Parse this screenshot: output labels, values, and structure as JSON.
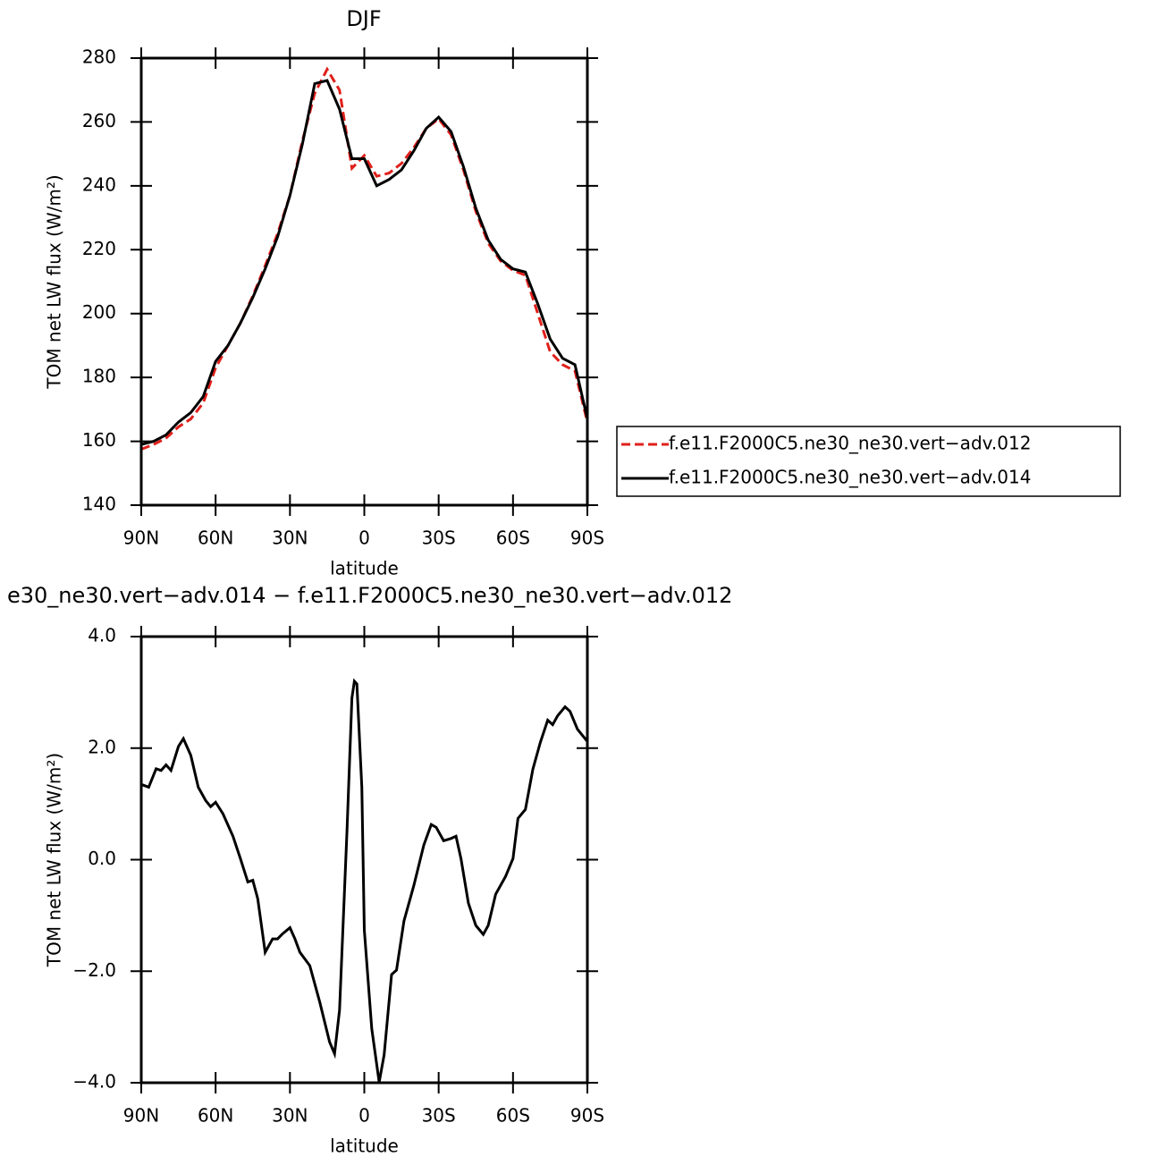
{
  "chart_data": [
    {
      "type": "line",
      "title": "DJF",
      "xlabel": "latitude",
      "ylabel": "TOM net LW flux (W/m²)",
      "x": [
        90,
        85,
        80,
        75,
        70,
        65,
        60,
        55,
        50,
        45,
        40,
        35,
        30,
        25,
        20,
        15,
        10,
        5,
        0,
        -5,
        -10,
        -15,
        -20,
        -25,
        -30,
        -35,
        -40,
        -45,
        -50,
        -55,
        -60,
        -65,
        -70,
        -75,
        -80,
        -85,
        -90
      ],
      "series": [
        {
          "name": "f.e11.F2000C5.ne30_ne30.vert−adv.012",
          "color": "#e0201b",
          "line_style": "dashed",
          "values": [
            157.5,
            159,
            161,
            164.5,
            167,
            172,
            183,
            190,
            197,
            205.5,
            215,
            225,
            237,
            254,
            269,
            276.5,
            270,
            245.5,
            249.5,
            243,
            244,
            247,
            252,
            258,
            261,
            256,
            245,
            232,
            222,
            216.5,
            213.5,
            212,
            200,
            188,
            184,
            182,
            166
          ]
        },
        {
          "name": "f.e11.F2000C5.ne30_ne30.vert−adv.014",
          "color": "#000000",
          "line_style": "solid",
          "values": [
            159,
            160,
            162,
            166,
            169,
            174,
            185,
            190,
            197,
            205,
            214,
            224,
            237,
            253,
            272,
            273,
            264,
            248.5,
            248.5,
            240,
            242,
            245,
            251,
            258,
            261.5,
            257,
            246,
            233,
            223,
            217,
            214,
            213,
            203,
            192,
            186,
            184,
            167
          ]
        }
      ],
      "xlim": [
        90,
        -90
      ],
      "xticks": [
        {
          "value": 90,
          "label": "90N"
        },
        {
          "value": 60,
          "label": "60N"
        },
        {
          "value": 30,
          "label": "30N"
        },
        0,
        {
          "value": -30,
          "label": "30S"
        },
        {
          "value": -60,
          "label": "60S"
        },
        {
          "value": -90,
          "label": "90S"
        }
      ],
      "ylim": [
        140,
        280
      ],
      "yticks": [
        140,
        160,
        180,
        200,
        220,
        240,
        260,
        280
      ],
      "legend": "right"
    },
    {
      "type": "line",
      "title": "e30_ne30.vert−adv.014 − f.e11.F2000C5.ne30_ne30.vert−adv.012",
      "xlabel": "latitude",
      "ylabel": "TOM net LW flux (W/m²)",
      "x": [
        90,
        87,
        84,
        82,
        80,
        78,
        75,
        73,
        70,
        67,
        64,
        62,
        60,
        57,
        53,
        50,
        47,
        45,
        43,
        40,
        37,
        35,
        33,
        30,
        28,
        26,
        22,
        18,
        14,
        12,
        10,
        7,
        5,
        4,
        3,
        1,
        0,
        -3,
        -6,
        -8,
        -11,
        -13,
        -16,
        -20,
        -24,
        -27,
        -29,
        -32,
        -35,
        -37,
        -39,
        -42,
        -45,
        -48,
        -50,
        -53,
        -57,
        -60,
        -62,
        -65,
        -68,
        -71,
        -74,
        -76,
        -78,
        -81,
        -83,
        -86,
        -90
      ],
      "series": [
        {
          "color": "#000000",
          "line_style": "solid",
          "values": [
            1.35,
            1.3,
            1.63,
            1.6,
            1.7,
            1.6,
            2.03,
            2.17,
            1.87,
            1.3,
            1.06,
            0.95,
            1.03,
            0.82,
            0.42,
            0.02,
            -0.4,
            -0.37,
            -0.7,
            -1.66,
            -1.42,
            -1.42,
            -1.33,
            -1.22,
            -1.42,
            -1.66,
            -1.9,
            -2.55,
            -3.27,
            -3.48,
            -2.7,
            0.5,
            2.9,
            3.2,
            3.15,
            1.3,
            -1.26,
            -3.03,
            -3.99,
            -3.5,
            -2.06,
            -1.98,
            -1.1,
            -0.46,
            0.26,
            0.63,
            0.58,
            0.34,
            0.38,
            0.42,
            0.02,
            -0.78,
            -1.18,
            -1.34,
            -1.18,
            -0.62,
            -0.3,
            0.02,
            0.74,
            0.9,
            1.62,
            2.1,
            2.5,
            2.42,
            2.58,
            2.74,
            2.66,
            2.34,
            2.12
          ]
        }
      ],
      "xlim": [
        90,
        -90
      ],
      "xticks": [
        {
          "value": 90,
          "label": "90N"
        },
        {
          "value": 60,
          "label": "60N"
        },
        {
          "value": 30,
          "label": "30N"
        },
        0,
        {
          "value": -30,
          "label": "30S"
        },
        {
          "value": -60,
          "label": "60S"
        },
        {
          "value": -90,
          "label": "90S"
        }
      ],
      "ylim": [
        -4,
        4
      ],
      "yticks": [
        {
          "value": -4,
          "label": "−4.0"
        },
        {
          "value": -2,
          "label": "−2.0"
        },
        {
          "value": 0,
          "label": "0.0"
        },
        {
          "value": 2,
          "label": "2.0"
        },
        {
          "value": 4,
          "label": "4.0"
        }
      ]
    }
  ]
}
